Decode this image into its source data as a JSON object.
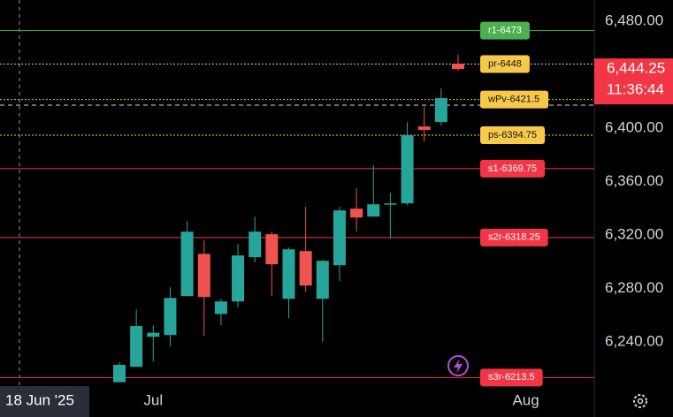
{
  "chart_data": {
    "type": "candlestick",
    "categories": [
      null,
      null,
      "Jul",
      null,
      null,
      null,
      null,
      null,
      null,
      null,
      null,
      null,
      null,
      null,
      null,
      null,
      null,
      null,
      null,
      null,
      null,
      null,
      null,
      null,
      "Aug"
    ],
    "open": [
      6210,
      6221.5,
      6244,
      6245.3,
      6274.4,
      6306,
      6261,
      6270.4,
      6303.5,
      6320.7,
      6272.4,
      6308.1,
      6272.4,
      6297.5,
      6339.8,
      6333.9,
      6343.1,
      6343.8,
      6401.3,
      6404.6,
      6448.3,
      null,
      null,
      null,
      null
    ],
    "high": [
      6225,
      6264.5,
      6252.5,
      6281,
      6330.6,
      6316,
      6272.4,
      6313.4,
      6333.9,
      6322.6,
      6310.7,
      6341.2,
      6301.5,
      6341.2,
      6355,
      6372.2,
      6351.7,
      6404.6,
      6416.5,
      6429.8,
      6454.9,
      null,
      null,
      null,
      null
    ],
    "low": [
      6210,
      6221.5,
      6225.5,
      6236.7,
      6274.4,
      6244.6,
      6252.6,
      6265.8,
      6299.5,
      6274.4,
      6257.9,
      6277.7,
      6240,
      6285.6,
      6322.6,
      6333.9,
      6317.4,
      6342.5,
      6390.1,
      6402,
      6443,
      null,
      null,
      null,
      null
    ],
    "close": [
      6223,
      6252,
      6247,
      6273,
      6322.6,
      6273.7,
      6270.4,
      6304.8,
      6322.6,
      6298.2,
      6309.4,
      6282.3,
      6300.8,
      6338.5,
      6333.2,
      6343.1,
      6343.8,
      6394.7,
      6398.7,
      6422.5,
      6444.25,
      null,
      null,
      null,
      null
    ],
    "up_color": "#26a69a",
    "down_color": "#ef5350",
    "ylim": [
      6207.1,
      6495.9
    ],
    "yticks": [
      {
        "value": 6240,
        "label": "6,240.00"
      },
      {
        "value": 6280,
        "label": "6,280.00"
      },
      {
        "value": 6320,
        "label": "6,320.00"
      },
      {
        "value": 6360,
        "label": "6,360.00"
      },
      {
        "value": 6400,
        "label": "6,400.00"
      },
      {
        "value": 6480,
        "label": "6,480.00"
      }
    ],
    "levels": [
      {
        "label": "r1-6473",
        "value": 6473,
        "color": "#4caf50"
      },
      {
        "label": "pr-6448",
        "value": 6448,
        "color": "#f7c948"
      },
      {
        "label": "wPv-6421.5",
        "value": 6421.5,
        "color": "#f7c948"
      },
      {
        "label": "ps-6394.75",
        "value": 6394.75,
        "color": "#f7c948"
      },
      {
        "label": "s1-6369.75",
        "value": 6369.75,
        "color": "#f23645"
      },
      {
        "label": "s2r-6318.25",
        "value": 6318.25,
        "color": "#f23645"
      },
      {
        "label": "s3r-6213.5",
        "value": 6213.5,
        "color": "#f23645"
      }
    ],
    "last_price": {
      "value": 6444.25,
      "label": "6,444.25"
    },
    "countdown": "11:36:44",
    "crosshair_date": "18 Jun '25"
  }
}
